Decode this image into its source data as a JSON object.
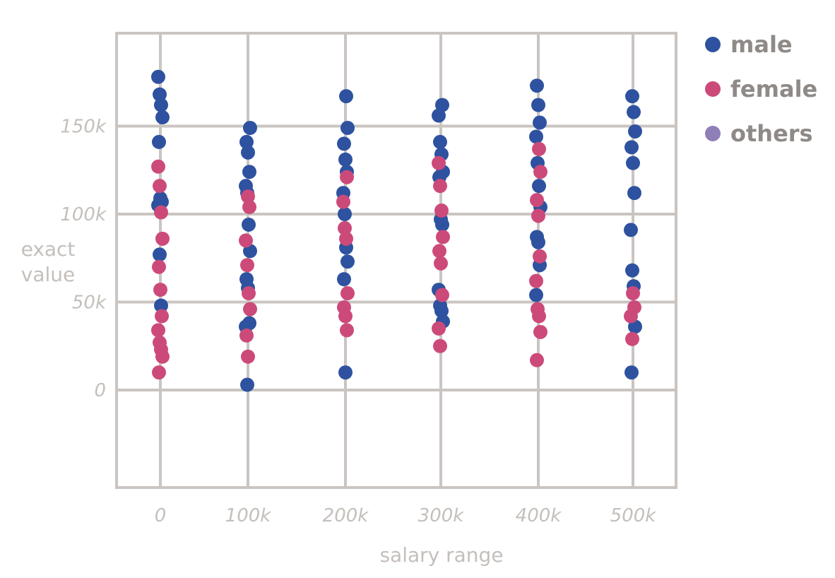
{
  "chart_data": {
    "type": "scatter",
    "title": "",
    "xlabel": "salary range",
    "ylabel": "exact value",
    "x_categories": [
      "0",
      "100k",
      "200k",
      "300k",
      "400k",
      "500k"
    ],
    "y_ticks": [
      {
        "value": 0,
        "label": "0"
      },
      {
        "value": 50000,
        "label": "50k"
      },
      {
        "value": 100000,
        "label": "100k"
      },
      {
        "value": 150000,
        "label": "150k"
      }
    ],
    "ylim": [
      -50000,
      190000
    ],
    "grid": true,
    "legend_position": "top-right",
    "series": [
      {
        "name": "male",
        "color": "#2e52a0",
        "points": [
          [
            "0",
            178000
          ],
          [
            "0",
            168000
          ],
          [
            "0",
            162000
          ],
          [
            "0",
            155000
          ],
          [
            "0",
            141000
          ],
          [
            "0",
            109000
          ],
          [
            "0",
            107000
          ],
          [
            "0",
            105000
          ],
          [
            "0",
            77000
          ],
          [
            "0",
            48000
          ],
          [
            "100k",
            149000
          ],
          [
            "100k",
            141000
          ],
          [
            "100k",
            135000
          ],
          [
            "100k",
            124000
          ],
          [
            "100k",
            116000
          ],
          [
            "100k",
            112000
          ],
          [
            "100k",
            94000
          ],
          [
            "100k",
            79000
          ],
          [
            "100k",
            63000
          ],
          [
            "100k",
            58000
          ],
          [
            "100k",
            38000
          ],
          [
            "100k",
            36000
          ],
          [
            "100k",
            3000
          ],
          [
            "200k",
            167000
          ],
          [
            "200k",
            149000
          ],
          [
            "200k",
            140000
          ],
          [
            "200k",
            131000
          ],
          [
            "200k",
            124000
          ],
          [
            "200k",
            112000
          ],
          [
            "200k",
            100000
          ],
          [
            "200k",
            81000
          ],
          [
            "200k",
            73000
          ],
          [
            "200k",
            63000
          ],
          [
            "200k",
            10000
          ],
          [
            "300k",
            162000
          ],
          [
            "300k",
            156000
          ],
          [
            "300k",
            141000
          ],
          [
            "300k",
            134000
          ],
          [
            "300k",
            124000
          ],
          [
            "300k",
            121000
          ],
          [
            "300k",
            97000
          ],
          [
            "300k",
            94000
          ],
          [
            "300k",
            57000
          ],
          [
            "300k",
            48000
          ],
          [
            "300k",
            45000
          ],
          [
            "300k",
            39000
          ],
          [
            "400k",
            173000
          ],
          [
            "400k",
            162000
          ],
          [
            "400k",
            152000
          ],
          [
            "400k",
            144000
          ],
          [
            "400k",
            129000
          ],
          [
            "400k",
            116000
          ],
          [
            "400k",
            104000
          ],
          [
            "400k",
            87000
          ],
          [
            "400k",
            84000
          ],
          [
            "400k",
            71000
          ],
          [
            "400k",
            54000
          ],
          [
            "500k",
            167000
          ],
          [
            "500k",
            158000
          ],
          [
            "500k",
            147000
          ],
          [
            "500k",
            138000
          ],
          [
            "500k",
            129000
          ],
          [
            "500k",
            112000
          ],
          [
            "500k",
            91000
          ],
          [
            "500k",
            68000
          ],
          [
            "500k",
            59000
          ],
          [
            "500k",
            36000
          ],
          [
            "500k",
            10000
          ]
        ]
      },
      {
        "name": "female",
        "color": "#cc4a7a",
        "points": [
          [
            "0",
            127000
          ],
          [
            "0",
            116000
          ],
          [
            "0",
            101000
          ],
          [
            "0",
            86000
          ],
          [
            "0",
            70000
          ],
          [
            "0",
            57000
          ],
          [
            "0",
            42000
          ],
          [
            "0",
            34000
          ],
          [
            "0",
            27000
          ],
          [
            "0",
            23000
          ],
          [
            "0",
            19000
          ],
          [
            "0",
            10000
          ],
          [
            "100k",
            110000
          ],
          [
            "100k",
            104000
          ],
          [
            "100k",
            85000
          ],
          [
            "100k",
            71000
          ],
          [
            "100k",
            55000
          ],
          [
            "100k",
            46000
          ],
          [
            "100k",
            31000
          ],
          [
            "100k",
            19000
          ],
          [
            "200k",
            121000
          ],
          [
            "200k",
            107000
          ],
          [
            "200k",
            92000
          ],
          [
            "200k",
            86000
          ],
          [
            "200k",
            55000
          ],
          [
            "200k",
            47000
          ],
          [
            "200k",
            42000
          ],
          [
            "200k",
            34000
          ],
          [
            "300k",
            129000
          ],
          [
            "300k",
            116000
          ],
          [
            "300k",
            102000
          ],
          [
            "300k",
            87000
          ],
          [
            "300k",
            79000
          ],
          [
            "300k",
            72000
          ],
          [
            "300k",
            54000
          ],
          [
            "300k",
            35000
          ],
          [
            "300k",
            25000
          ],
          [
            "400k",
            137000
          ],
          [
            "400k",
            124000
          ],
          [
            "400k",
            108000
          ],
          [
            "400k",
            99000
          ],
          [
            "400k",
            76000
          ],
          [
            "400k",
            62000
          ],
          [
            "400k",
            46000
          ],
          [
            "400k",
            42000
          ],
          [
            "400k",
            33000
          ],
          [
            "400k",
            17000
          ],
          [
            "500k",
            55000
          ],
          [
            "500k",
            47000
          ],
          [
            "500k",
            42000
          ],
          [
            "500k",
            29000
          ]
        ]
      },
      {
        "name": "others",
        "color": "#8f7fb6",
        "points": []
      }
    ]
  }
}
